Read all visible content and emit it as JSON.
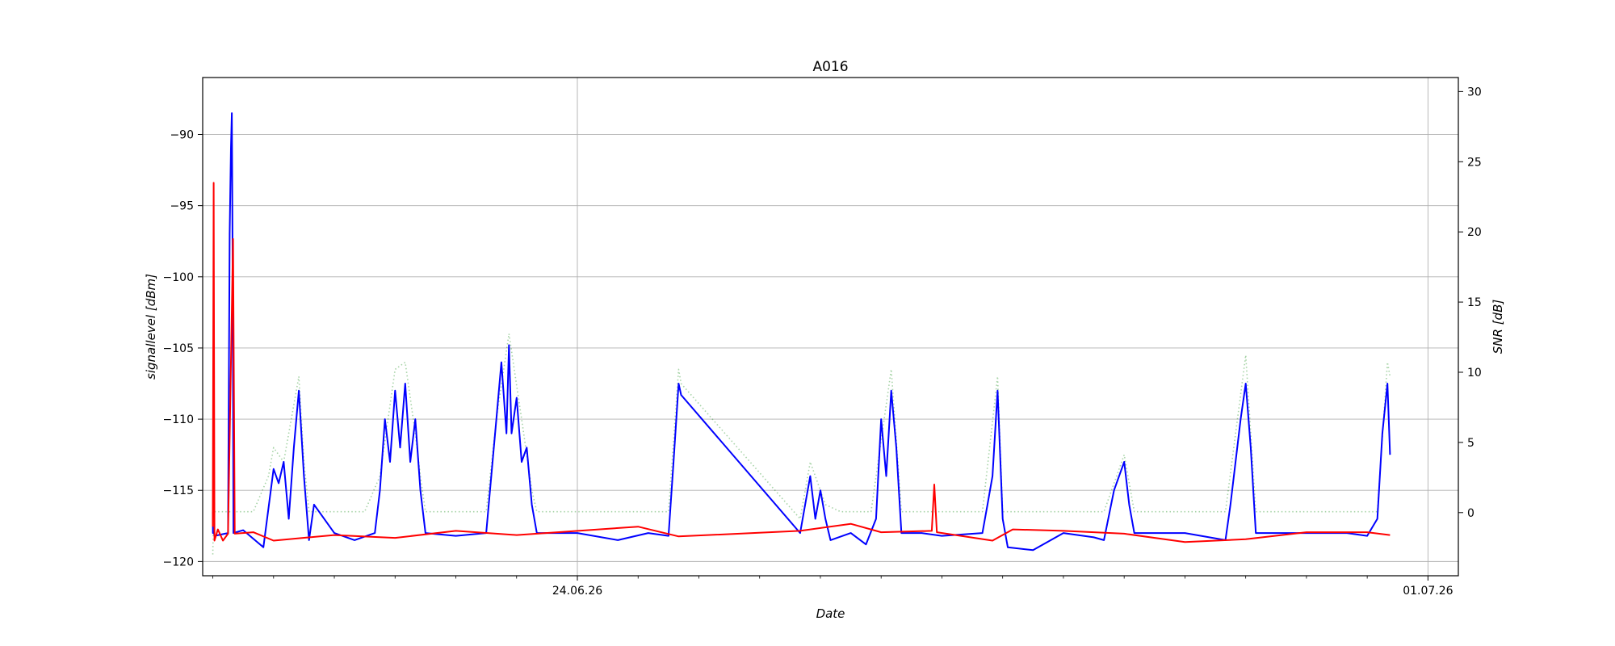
{
  "chart_data": {
    "type": "line",
    "title": "A016",
    "xlabel": "Date",
    "ylabel_left": "signallevel [dBm]",
    "ylabel_right": "SNR [dB]",
    "x_ticks": [
      "24.06.26",
      "01.07.26"
    ],
    "x_range": [
      "2026-06-20 22:00",
      "2026-07-01 06:00"
    ],
    "ylim_left": [
      -121,
      -86
    ],
    "ylim_right": [
      -4.5,
      31
    ],
    "y_ticks_left": [
      -120,
      -115,
      -110,
      -105,
      -100,
      -95,
      -90
    ],
    "y_ticks_right": [
      0,
      5,
      10,
      15,
      20,
      25,
      30
    ],
    "grid": true,
    "series": [
      {
        "axis": "left",
        "color": "#0000ff",
        "style": "solid",
        "points": [
          [
            "2026-06-21 00:00",
            -116.5
          ],
          [
            "2026-06-21 00:02",
            -118.0
          ],
          [
            "2026-06-21 00:10",
            -117.9
          ],
          [
            "2026-06-21 00:20",
            -118.2
          ],
          [
            "2026-06-21 03:00",
            -118.0
          ],
          [
            "2026-06-21 03:20",
            -97.0
          ],
          [
            "2026-06-21 03:35",
            -91.0
          ],
          [
            "2026-06-21 03:45",
            -88.5
          ],
          [
            "2026-06-21 03:55",
            -99.0
          ],
          [
            "2026-06-21 04:05",
            -118.0
          ],
          [
            "2026-06-21 06:00",
            -117.8
          ],
          [
            "2026-06-21 09:00",
            -118.7
          ],
          [
            "2026-06-21 10:00",
            -119.0
          ],
          [
            "2026-06-21 12:00",
            -113.5
          ],
          [
            "2026-06-21 13:00",
            -114.5
          ],
          [
            "2026-06-21 14:00",
            -113.0
          ],
          [
            "2026-06-21 15:00",
            -117.0
          ],
          [
            "2026-06-21 16:00",
            -112.0
          ],
          [
            "2026-06-21 17:00",
            -108.0
          ],
          [
            "2026-06-21 18:00",
            -114.0
          ],
          [
            "2026-06-21 19:00",
            -118.5
          ],
          [
            "2026-06-21 20:00",
            -116.0
          ],
          [
            "2026-06-22 00:00",
            -118.0
          ],
          [
            "2026-06-22 04:00",
            -118.5
          ],
          [
            "2026-06-22 08:00",
            -118.0
          ],
          [
            "2026-06-22 09:00",
            -115.0
          ],
          [
            "2026-06-22 10:00",
            -110.0
          ],
          [
            "2026-06-22 11:00",
            -113.0
          ],
          [
            "2026-06-22 12:00",
            -108.0
          ],
          [
            "2026-06-22 13:00",
            -112.0
          ],
          [
            "2026-06-22 14:00",
            -107.5
          ],
          [
            "2026-06-22 15:00",
            -113.0
          ],
          [
            "2026-06-22 16:00",
            -110.0
          ],
          [
            "2026-06-22 17:00",
            -115.0
          ],
          [
            "2026-06-22 18:00",
            -118.0
          ],
          [
            "2026-06-23 00:00",
            -118.2
          ],
          [
            "2026-06-23 06:00",
            -118.0
          ],
          [
            "2026-06-23 07:00",
            -114.0
          ],
          [
            "2026-06-23 08:00",
            -110.0
          ],
          [
            "2026-06-23 09:00",
            -106.0
          ],
          [
            "2026-06-23 10:00",
            -111.0
          ],
          [
            "2026-06-23 10:30",
            -104.8
          ],
          [
            "2026-06-23 11:00",
            -111.0
          ],
          [
            "2026-06-23 12:00",
            -108.5
          ],
          [
            "2026-06-23 13:00",
            -113.0
          ],
          [
            "2026-06-23 14:00",
            -112.0
          ],
          [
            "2026-06-23 15:00",
            -116.0
          ],
          [
            "2026-06-23 16:00",
            -118.0
          ],
          [
            "2026-06-24 00:00",
            -118.0
          ],
          [
            "2026-06-24 08:00",
            -118.5
          ],
          [
            "2026-06-24 14:00",
            -118.0
          ],
          [
            "2026-06-24 18:00",
            -118.2
          ],
          [
            "2026-06-24 19:00",
            -113.0
          ],
          [
            "2026-06-24 20:00",
            -107.5
          ],
          [
            "2026-06-24 20:30",
            -108.3
          ],
          [
            "2026-06-25 20:00",
            -118.0
          ],
          [
            "2026-06-25 21:00",
            -116.0
          ],
          [
            "2026-06-25 22:00",
            -114.0
          ],
          [
            "2026-06-25 23:00",
            -117.0
          ],
          [
            "2026-06-26 00:00",
            -115.0
          ],
          [
            "2026-06-26 01:00",
            -117.0
          ],
          [
            "2026-06-26 02:00",
            -118.5
          ],
          [
            "2026-06-26 06:00",
            -118.0
          ],
          [
            "2026-06-26 09:00",
            -118.8
          ],
          [
            "2026-06-26 11:00",
            -117.0
          ],
          [
            "2026-06-26 12:00",
            -110.0
          ],
          [
            "2026-06-26 13:00",
            -114.0
          ],
          [
            "2026-06-26 14:00",
            -108.0
          ],
          [
            "2026-06-26 15:00",
            -112.0
          ],
          [
            "2026-06-26 16:00",
            -118.0
          ],
          [
            "2026-06-26 20:00",
            -118.0
          ],
          [
            "2026-06-27 00:00",
            -118.2
          ],
          [
            "2026-06-27 08:00",
            -118.0
          ],
          [
            "2026-06-27 09:00",
            -116.0
          ],
          [
            "2026-06-27 10:00",
            -114.0
          ],
          [
            "2026-06-27 11:00",
            -108.0
          ],
          [
            "2026-06-27 12:00",
            -117.0
          ],
          [
            "2026-06-27 13:00",
            -119.0
          ],
          [
            "2026-06-27 18:00",
            -119.2
          ],
          [
            "2026-06-28 00:00",
            -118.0
          ],
          [
            "2026-06-28 06:00",
            -118.3
          ],
          [
            "2026-06-28 08:00",
            -118.5
          ],
          [
            "2026-06-28 10:00",
            -115.0
          ],
          [
            "2026-06-28 11:00",
            -114.0
          ],
          [
            "2026-06-28 12:00",
            -113.0
          ],
          [
            "2026-06-28 13:00",
            -116.0
          ],
          [
            "2026-06-28 14:00",
            -118.0
          ],
          [
            "2026-06-29 00:00",
            -118.0
          ],
          [
            "2026-06-29 08:00",
            -118.5
          ],
          [
            "2026-06-29 09:00",
            -116.0
          ],
          [
            "2026-06-29 10:00",
            -113.0
          ],
          [
            "2026-06-29 11:00",
            -110.0
          ],
          [
            "2026-06-29 12:00",
            -107.5
          ],
          [
            "2026-06-29 13:00",
            -112.0
          ],
          [
            "2026-06-29 14:00",
            -118.0
          ],
          [
            "2026-06-30 00:00",
            -118.0
          ],
          [
            "2026-06-30 08:00",
            -118.0
          ],
          [
            "2026-06-30 12:00",
            -118.2
          ],
          [
            "2026-06-30 14:00",
            -117.0
          ],
          [
            "2026-06-30 15:00",
            -111.0
          ],
          [
            "2026-06-30 16:00",
            -107.5
          ],
          [
            "2026-06-30 16:30",
            -112.5
          ]
        ]
      },
      {
        "axis": "left",
        "color": "#008000",
        "style": "dotted",
        "points": [
          [
            "2026-06-21 00:00",
            -119.5
          ],
          [
            "2026-06-21 00:10",
            -116.5
          ],
          [
            "2026-06-21 05:00",
            -116.5
          ],
          [
            "2026-06-21 08:00",
            -116.5
          ],
          [
            "2026-06-21 11:00",
            -114.0
          ],
          [
            "2026-06-21 12:00",
            -112.0
          ],
          [
            "2026-06-21 14:00",
            -113.0
          ],
          [
            "2026-06-21 17:00",
            -107.0
          ],
          [
            "2026-06-21 18:00",
            -113.0
          ],
          [
            "2026-06-21 19:00",
            -116.5
          ],
          [
            "2026-06-22 06:00",
            -116.5
          ],
          [
            "2026-06-22 09:00",
            -114.0
          ],
          [
            "2026-06-22 12:00",
            -106.5
          ],
          [
            "2026-06-22 14:00",
            -106.0
          ],
          [
            "2026-06-22 16:00",
            -111.0
          ],
          [
            "2026-06-22 17:00",
            -114.0
          ],
          [
            "2026-06-22 18:00",
            -116.5
          ],
          [
            "2026-06-23 06:00",
            -116.5
          ],
          [
            "2026-06-23 08:00",
            -110.0
          ],
          [
            "2026-06-23 10:30",
            -104.0
          ],
          [
            "2026-06-23 13:00",
            -110.0
          ],
          [
            "2026-06-23 15:00",
            -115.0
          ],
          [
            "2026-06-23 16:00",
            -116.5
          ],
          [
            "2026-06-24 18:00",
            -116.5
          ],
          [
            "2026-06-24 20:00",
            -106.5
          ],
          [
            "2026-06-24 20:30",
            -107.5
          ],
          [
            "2026-06-25 20:00",
            -117.0
          ],
          [
            "2026-06-25 22:00",
            -113.0
          ],
          [
            "2026-06-26 01:00",
            -116.0
          ],
          [
            "2026-06-26 04:00",
            -116.5
          ],
          [
            "2026-06-26 10:00",
            -116.5
          ],
          [
            "2026-06-26 14:00",
            -106.5
          ],
          [
            "2026-06-26 16:00",
            -116.5
          ],
          [
            "2026-06-27 08:00",
            -116.5
          ],
          [
            "2026-06-27 11:00",
            -107.0
          ],
          [
            "2026-06-27 12:00",
            -116.5
          ],
          [
            "2026-06-28 08:00",
            -116.5
          ],
          [
            "2026-06-28 12:00",
            -112.5
          ],
          [
            "2026-06-28 14:00",
            -116.5
          ],
          [
            "2026-06-29 08:00",
            -116.5
          ],
          [
            "2026-06-29 12:00",
            -105.5
          ],
          [
            "2026-06-29 14:00",
            -116.5
          ],
          [
            "2026-06-30 14:00",
            -116.5
          ],
          [
            "2026-06-30 16:00",
            -106.0
          ],
          [
            "2026-06-30 16:30",
            -107.0
          ]
        ]
      },
      {
        "axis": "right",
        "color": "#ff0000",
        "style": "solid",
        "points": [
          [
            "2026-06-21 00:00",
            -1.0
          ],
          [
            "2026-06-21 00:10",
            23.5
          ],
          [
            "2026-06-21 00:20",
            -2.0
          ],
          [
            "2026-06-21 01:00",
            -1.2
          ],
          [
            "2026-06-21 02:00",
            -2.0
          ],
          [
            "2026-06-21 03:00",
            -1.5
          ],
          [
            "2026-06-21 04:00",
            19.5
          ],
          [
            "2026-06-21 04:20",
            -1.5
          ],
          [
            "2026-06-21 08:00",
            -1.4
          ],
          [
            "2026-06-21 12:00",
            -2.0
          ],
          [
            "2026-06-22 00:00",
            -1.6
          ],
          [
            "2026-06-22 12:00",
            -1.8
          ],
          [
            "2026-06-23 00:00",
            -1.3
          ],
          [
            "2026-06-23 12:00",
            -1.6
          ],
          [
            "2026-06-24 12:00",
            -1.0
          ],
          [
            "2026-06-24 20:00",
            -1.7
          ],
          [
            "2026-06-25 20:00",
            -1.3
          ],
          [
            "2026-06-26 06:00",
            -0.8
          ],
          [
            "2026-06-26 12:00",
            -1.4
          ],
          [
            "2026-06-26 22:00",
            -1.3
          ],
          [
            "2026-06-26 22:30",
            2.0
          ],
          [
            "2026-06-26 23:00",
            -1.4
          ],
          [
            "2026-06-27 10:00",
            -2.0
          ],
          [
            "2026-06-27 14:00",
            -1.2
          ],
          [
            "2026-06-28 00:00",
            -1.3
          ],
          [
            "2026-06-28 12:00",
            -1.5
          ],
          [
            "2026-06-29 00:00",
            -2.1
          ],
          [
            "2026-06-29 12:00",
            -1.9
          ],
          [
            "2026-06-30 00:00",
            -1.4
          ],
          [
            "2026-06-30 12:00",
            -1.4
          ],
          [
            "2026-06-30 16:30",
            -1.6
          ]
        ]
      }
    ]
  }
}
